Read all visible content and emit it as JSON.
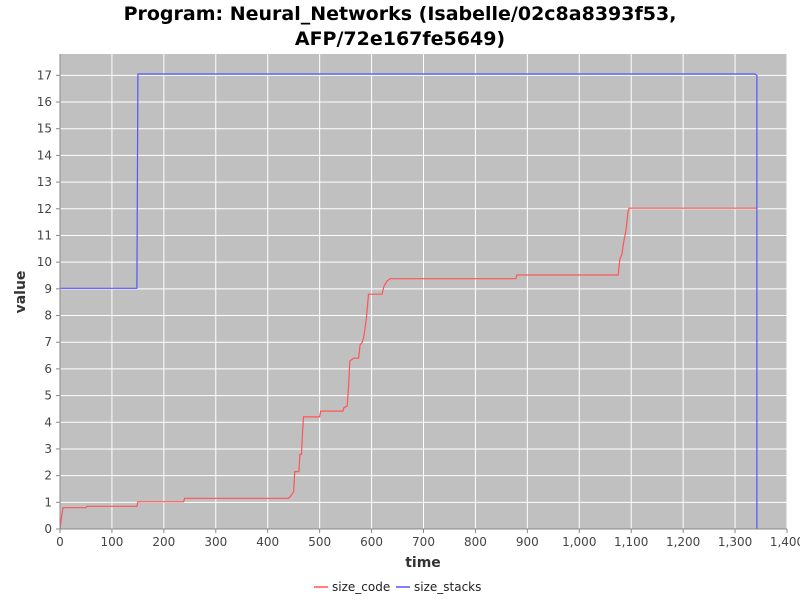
{
  "chart_data": {
    "type": "line",
    "title": "Program: Neural_Networks (Isabelle/02c8a8393f53, AFP/72e167fe5649)",
    "title_lines": [
      "Program: Neural_Networks (Isabelle/02c8a8393f53,",
      "AFP/72e167fe5649)"
    ],
    "xlabel": "time",
    "ylabel": "value",
    "xlim": [
      0,
      1400
    ],
    "ylim": [
      0,
      17.8
    ],
    "x_ticks": [
      0,
      100,
      200,
      300,
      400,
      500,
      600,
      700,
      800,
      900,
      1000,
      1100,
      1200,
      1300,
      1400
    ],
    "x_tick_labels": [
      "0",
      "100",
      "200",
      "300",
      "400",
      "500",
      "600",
      "700",
      "800",
      "900",
      "1,000",
      "1,100",
      "1,200",
      "1,300",
      "1,400"
    ],
    "y_ticks": [
      0,
      1,
      2,
      3,
      4,
      5,
      6,
      7,
      8,
      9,
      10,
      11,
      12,
      13,
      14,
      15,
      16,
      17
    ],
    "y_tick_labels": [
      "0",
      "1",
      "2",
      "3",
      "4",
      "5",
      "6",
      "7",
      "8",
      "9",
      "10",
      "11",
      "12",
      "13",
      "14",
      "15",
      "16",
      "17"
    ],
    "grid": true,
    "legend_position": "bottom",
    "series": [
      {
        "name": "size_code",
        "color": "#ff5555",
        "points": [
          [
            0,
            0
          ],
          [
            2,
            0.3
          ],
          [
            4,
            0.6
          ],
          [
            6,
            0.8
          ],
          [
            50,
            0.8
          ],
          [
            52,
            0.85
          ],
          [
            148,
            0.85
          ],
          [
            150,
            1.02
          ],
          [
            238,
            1.02
          ],
          [
            240,
            1.15
          ],
          [
            440,
            1.15
          ],
          [
            445,
            1.25
          ],
          [
            450,
            1.4
          ],
          [
            452,
            2.15
          ],
          [
            460,
            2.15
          ],
          [
            462,
            2.8
          ],
          [
            465,
            2.8
          ],
          [
            467,
            3.6
          ],
          [
            469,
            4.2
          ],
          [
            500,
            4.2
          ],
          [
            502,
            4.42
          ],
          [
            545,
            4.42
          ],
          [
            547,
            4.55
          ],
          [
            553,
            4.6
          ],
          [
            556,
            5.4
          ],
          [
            558,
            6.3
          ],
          [
            562,
            6.35
          ],
          [
            565,
            6.4
          ],
          [
            575,
            6.4
          ],
          [
            578,
            6.9
          ],
          [
            582,
            7.0
          ],
          [
            585,
            7.2
          ],
          [
            590,
            7.9
          ],
          [
            594,
            8.8
          ],
          [
            620,
            8.8
          ],
          [
            624,
            9.1
          ],
          [
            630,
            9.3
          ],
          [
            636,
            9.38
          ],
          [
            878,
            9.38
          ],
          [
            880,
            9.52
          ],
          [
            1075,
            9.52
          ],
          [
            1078,
            10.1
          ],
          [
            1082,
            10.3
          ],
          [
            1086,
            10.8
          ],
          [
            1090,
            11.2
          ],
          [
            1094,
            11.9
          ],
          [
            1096,
            12.02
          ],
          [
            1342,
            12.02
          ]
        ]
      },
      {
        "name": "size_stacks",
        "color": "#5555ff",
        "points": [
          [
            0,
            9.02
          ],
          [
            148,
            9.02
          ],
          [
            150,
            17.05
          ],
          [
            1338,
            17.05
          ],
          [
            1342,
            17.0
          ],
          [
            1342,
            0
          ]
        ]
      }
    ]
  }
}
